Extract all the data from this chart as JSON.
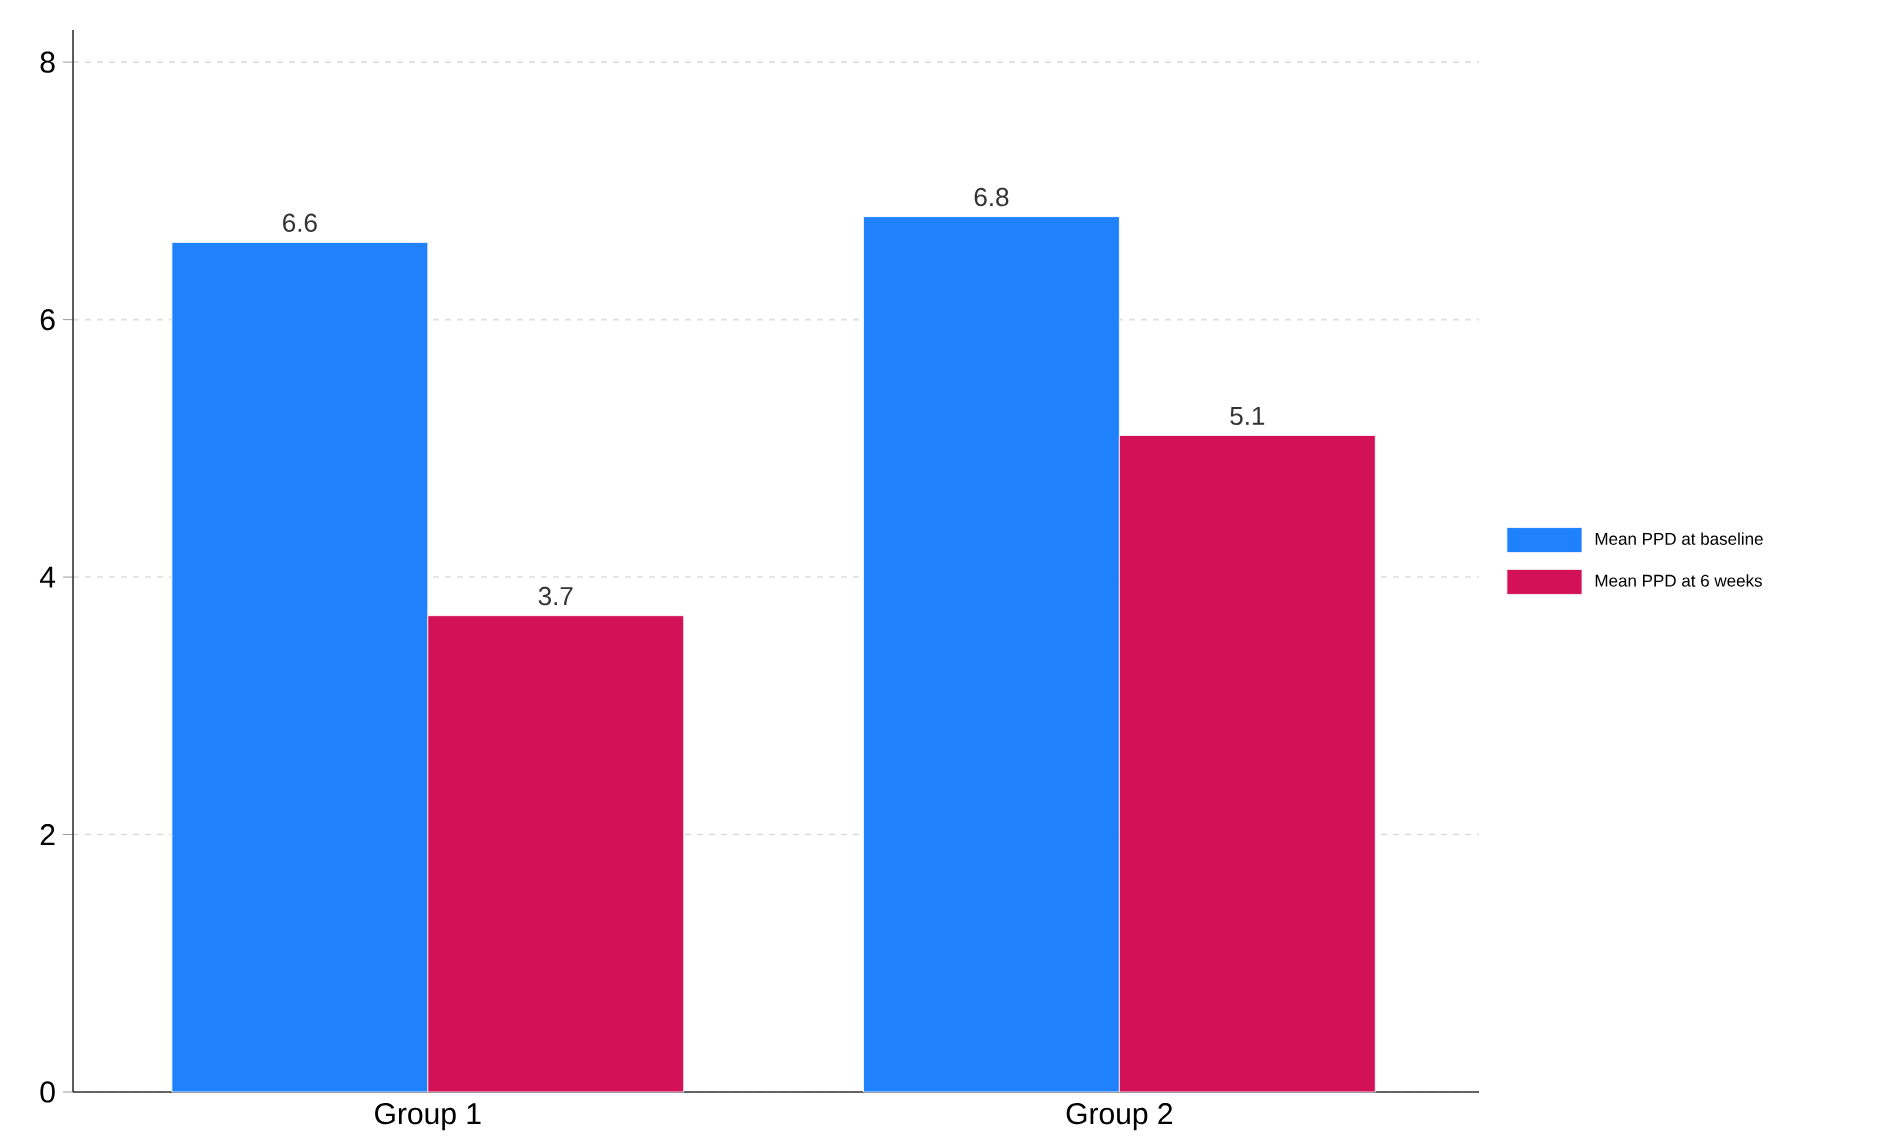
{
  "chart_data": {
    "type": "bar",
    "categories": [
      "Group 1",
      "Group 2"
    ],
    "series": [
      {
        "name": "Mean PPD at baseline",
        "color": "#1f82fc",
        "values": [
          6.6,
          6.8
        ]
      },
      {
        "name": "Mean PPD at 6 weeks",
        "color": "#d31157",
        "values": [
          3.7,
          5.1
        ]
      }
    ],
    "ylim": [
      0,
      8.25
    ],
    "yticks": [
      0,
      2,
      4,
      6,
      8
    ],
    "grid": "y",
    "legend": "right",
    "data_labels": true
  }
}
